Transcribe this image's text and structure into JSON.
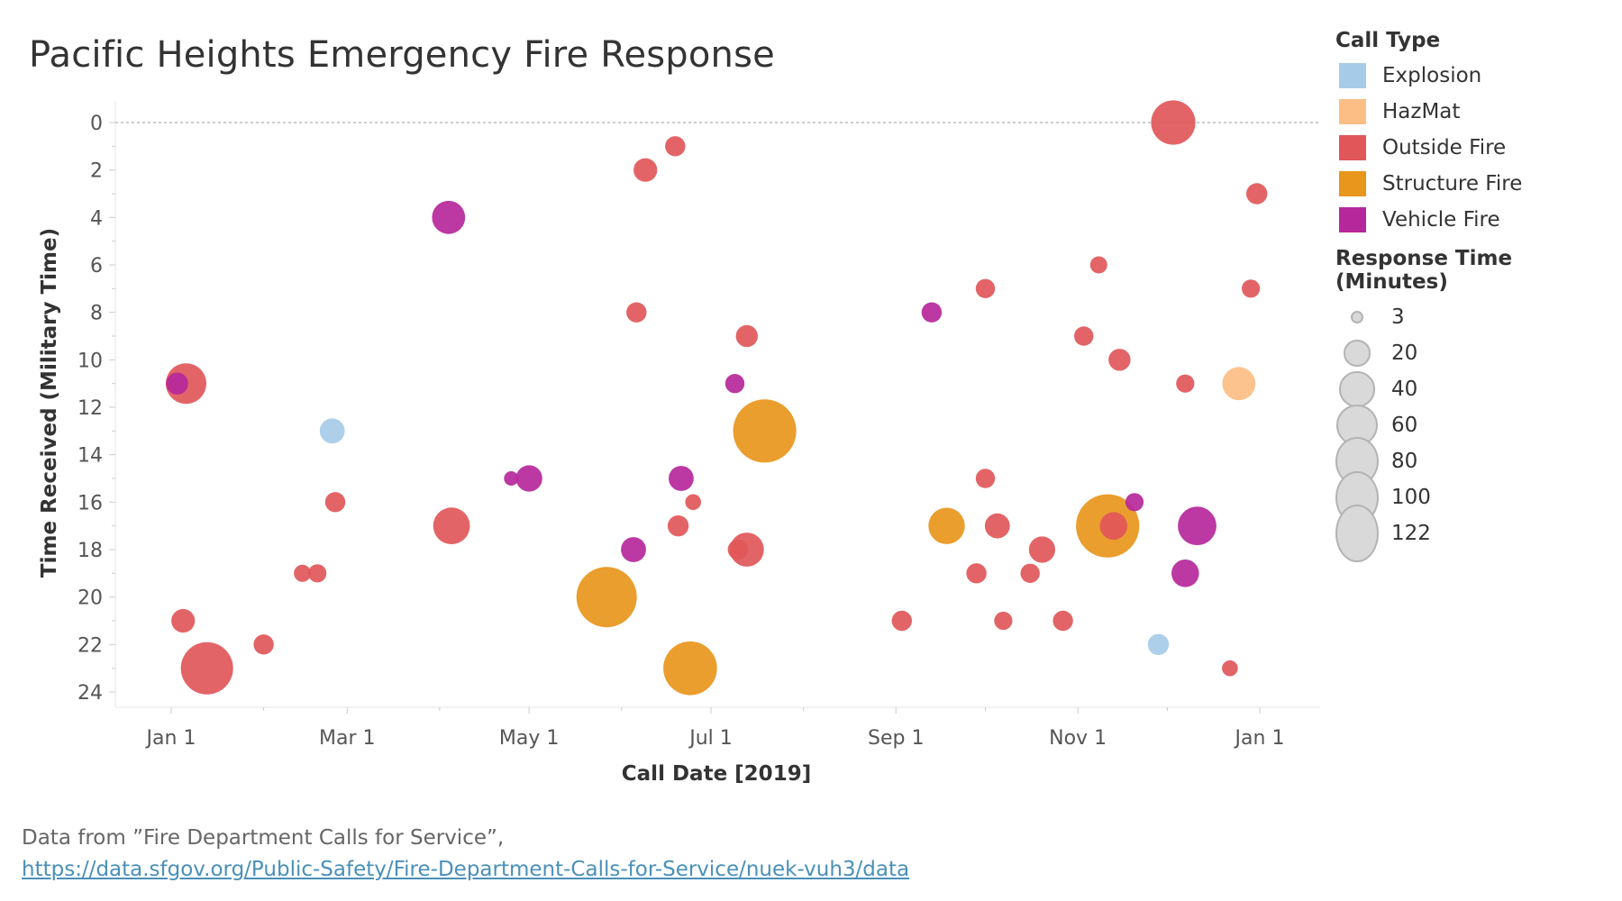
{
  "title": "Pacific Heights Emergency Fire Response",
  "legend": {
    "color_title": "Call Type",
    "categories": [
      {
        "label": "Explosion",
        "color": "#a6cbe8"
      },
      {
        "label": "HazMat",
        "color": "#fdbe85"
      },
      {
        "label": "Outside Fire",
        "color": "#e15759"
      },
      {
        "label": "Structure Fire",
        "color": "#e8961c"
      },
      {
        "label": "Vehicle Fire",
        "color": "#b6279b"
      }
    ],
    "size_title": "Response Time (Minutes)",
    "sizes": [
      {
        "label": "3",
        "value": 3
      },
      {
        "label": "20",
        "value": 20
      },
      {
        "label": "40",
        "value": 40
      },
      {
        "label": "60",
        "value": 60
      },
      {
        "label": "80",
        "value": 80
      },
      {
        "label": "100",
        "value": 100
      },
      {
        "label": "122",
        "value": 122
      }
    ]
  },
  "source": {
    "text": "Data from ”Fire Department Calls for Service”,",
    "link": "https://data.sfgov.org/Public-Safety/Fire-Department-Calls-for-Service/nuek-vuh3/data"
  },
  "chart_data": {
    "type": "scatter",
    "xlabel": "Call Date [2019]",
    "ylabel": "Time Received (Military Time)",
    "x_ticks": [
      "Jan 1",
      "Mar 1",
      "May 1",
      "Jul 1",
      "Sep 1",
      "Nov 1",
      "Jan 1"
    ],
    "x_tick_dates": [
      "2019-01-01",
      "2019-03-01",
      "2019-05-01",
      "2019-07-01",
      "2019-09-01",
      "2019-11-01",
      "2020-01-01"
    ],
    "y_ticks": [
      0,
      2,
      4,
      6,
      8,
      10,
      12,
      14,
      16,
      18,
      20,
      22,
      24
    ],
    "ylim": [
      0,
      24
    ],
    "y_reversed": true,
    "xlim": [
      "2018-12-14",
      "2020-01-20"
    ],
    "reference_line_y": 0,
    "size_encoding": "Response Time (Minutes)",
    "color_encoding": "Call Type",
    "points": [
      {
        "date": "2019-01-03",
        "time": 11.0,
        "type": "Vehicle Fire",
        "response": 10
      },
      {
        "date": "2019-01-06",
        "time": 11.0,
        "type": "Outside Fire",
        "response": 45
      },
      {
        "date": "2019-01-05",
        "time": 21.0,
        "type": "Outside Fire",
        "response": 12
      },
      {
        "date": "2019-01-13",
        "time": 23.0,
        "type": "Outside Fire",
        "response": 80
      },
      {
        "date": "2019-02-01",
        "time": 22.0,
        "type": "Outside Fire",
        "response": 8
      },
      {
        "date": "2019-02-14",
        "time": 19.0,
        "type": "Outside Fire",
        "response": 5
      },
      {
        "date": "2019-02-19",
        "time": 19.0,
        "type": "Outside Fire",
        "response": 6
      },
      {
        "date": "2019-02-24",
        "time": 13.0,
        "type": "Explosion",
        "response": 14
      },
      {
        "date": "2019-02-25",
        "time": 16.0,
        "type": "Outside Fire",
        "response": 8
      },
      {
        "date": "2019-04-04",
        "time": 4.0,
        "type": "Vehicle Fire",
        "response": 28
      },
      {
        "date": "2019-04-05",
        "time": 17.0,
        "type": "Outside Fire",
        "response": 36
      },
      {
        "date": "2019-04-25",
        "time": 15.0,
        "type": "Vehicle Fire",
        "response": 3
      },
      {
        "date": "2019-05-01",
        "time": 15.0,
        "type": "Vehicle Fire",
        "response": 16
      },
      {
        "date": "2019-05-27",
        "time": 20.0,
        "type": "Structure Fire",
        "response": 110
      },
      {
        "date": "2019-06-05",
        "time": 18.0,
        "type": "Vehicle Fire",
        "response": 14
      },
      {
        "date": "2019-06-06",
        "time": 8.0,
        "type": "Outside Fire",
        "response": 8
      },
      {
        "date": "2019-06-09",
        "time": 2.0,
        "type": "Outside Fire",
        "response": 12
      },
      {
        "date": "2019-06-19",
        "time": 1.0,
        "type": "Outside Fire",
        "response": 8
      },
      {
        "date": "2019-06-20",
        "time": 17.0,
        "type": "Outside Fire",
        "response": 9
      },
      {
        "date": "2019-06-21",
        "time": 15.0,
        "type": "Vehicle Fire",
        "response": 14
      },
      {
        "date": "2019-06-25",
        "time": 16.0,
        "type": "Outside Fire",
        "response": 4
      },
      {
        "date": "2019-06-24",
        "time": 23.0,
        "type": "Structure Fire",
        "response": 85
      },
      {
        "date": "2019-07-09",
        "time": 11.0,
        "type": "Vehicle Fire",
        "response": 7
      },
      {
        "date": "2019-07-10",
        "time": 18.0,
        "type": "Outside Fire",
        "response": 8
      },
      {
        "date": "2019-07-13",
        "time": 9.0,
        "type": "Outside Fire",
        "response": 10
      },
      {
        "date": "2019-07-13",
        "time": 18.0,
        "type": "Outside Fire",
        "response": 30
      },
      {
        "date": "2019-07-19",
        "time": 13.0,
        "type": "Structure Fire",
        "response": 122
      },
      {
        "date": "2019-09-03",
        "time": 21.0,
        "type": "Outside Fire",
        "response": 8
      },
      {
        "date": "2019-09-13",
        "time": 8.0,
        "type": "Vehicle Fire",
        "response": 8
      },
      {
        "date": "2019-09-18",
        "time": 17.0,
        "type": "Structure Fire",
        "response": 35
      },
      {
        "date": "2019-09-28",
        "time": 19.0,
        "type": "Outside Fire",
        "response": 8
      },
      {
        "date": "2019-10-01",
        "time": 7.0,
        "type": "Outside Fire",
        "response": 7
      },
      {
        "date": "2019-10-01",
        "time": 15.0,
        "type": "Outside Fire",
        "response": 7
      },
      {
        "date": "2019-10-05",
        "time": 17.0,
        "type": "Outside Fire",
        "response": 14
      },
      {
        "date": "2019-10-07",
        "time": 21.0,
        "type": "Outside Fire",
        "response": 6
      },
      {
        "date": "2019-10-16",
        "time": 19.0,
        "type": "Outside Fire",
        "response": 7
      },
      {
        "date": "2019-10-20",
        "time": 18.0,
        "type": "Outside Fire",
        "response": 16
      },
      {
        "date": "2019-10-27",
        "time": 21.0,
        "type": "Outside Fire",
        "response": 8
      },
      {
        "date": "2019-11-03",
        "time": 9.0,
        "type": "Outside Fire",
        "response": 7
      },
      {
        "date": "2019-11-08",
        "time": 6.0,
        "type": "Outside Fire",
        "response": 5
      },
      {
        "date": "2019-11-11",
        "time": 17.0,
        "type": "Structure Fire",
        "response": 122
      },
      {
        "date": "2019-11-13",
        "time": 17.0,
        "type": "Outside Fire",
        "response": 18
      },
      {
        "date": "2019-11-15",
        "time": 10.0,
        "type": "Outside Fire",
        "response": 10
      },
      {
        "date": "2019-11-20",
        "time": 16.0,
        "type": "Vehicle Fire",
        "response": 6
      },
      {
        "date": "2019-11-28",
        "time": 22.0,
        "type": "Explosion",
        "response": 9
      },
      {
        "date": "2019-12-03",
        "time": 0.0,
        "type": "Outside Fire",
        "response": 55
      },
      {
        "date": "2019-12-07",
        "time": 11.0,
        "type": "Outside Fire",
        "response": 6
      },
      {
        "date": "2019-12-07",
        "time": 19.0,
        "type": "Vehicle Fire",
        "response": 18
      },
      {
        "date": "2019-12-11",
        "time": 17.0,
        "type": "Vehicle Fire",
        "response": 40
      },
      {
        "date": "2019-12-22",
        "time": 23.0,
        "type": "Outside Fire",
        "response": 4
      },
      {
        "date": "2019-12-25",
        "time": 11.0,
        "type": "HazMat",
        "response": 28
      },
      {
        "date": "2019-12-29",
        "time": 7.0,
        "type": "Outside Fire",
        "response": 6
      },
      {
        "date": "2019-12-31",
        "time": 3.0,
        "type": "Outside Fire",
        "response": 9
      }
    ]
  }
}
